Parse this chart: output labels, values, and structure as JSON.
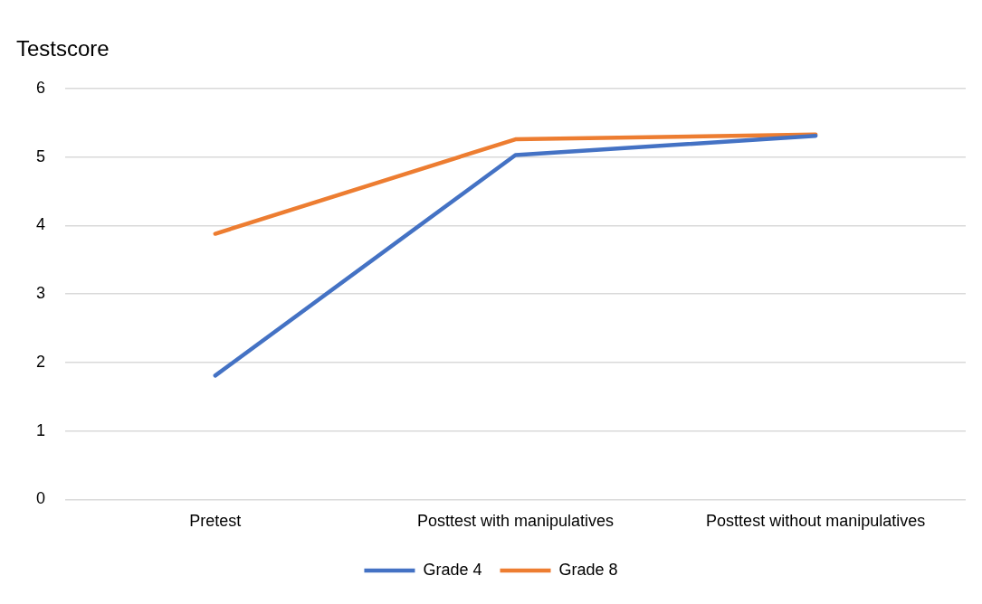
{
  "chart_data": {
    "type": "line",
    "ylabel": "Testscore",
    "categories": [
      "Pretest",
      "Posttest with manipulatives",
      "Posttest without manipulatives"
    ],
    "series": [
      {
        "name": "Grade 4",
        "color": "#4472c4",
        "values": [
          1.81,
          5.03,
          5.31
        ]
      },
      {
        "name": "Grade 8",
        "color": "#ed7d31",
        "values": [
          3.88,
          5.26,
          5.33
        ]
      }
    ],
    "ylim": [
      0,
      6
    ],
    "yticks": [
      0,
      1,
      2,
      3,
      4,
      5,
      6
    ],
    "grid": "y",
    "legend": "bottom",
    "marker": "none",
    "line_style": "solid"
  }
}
